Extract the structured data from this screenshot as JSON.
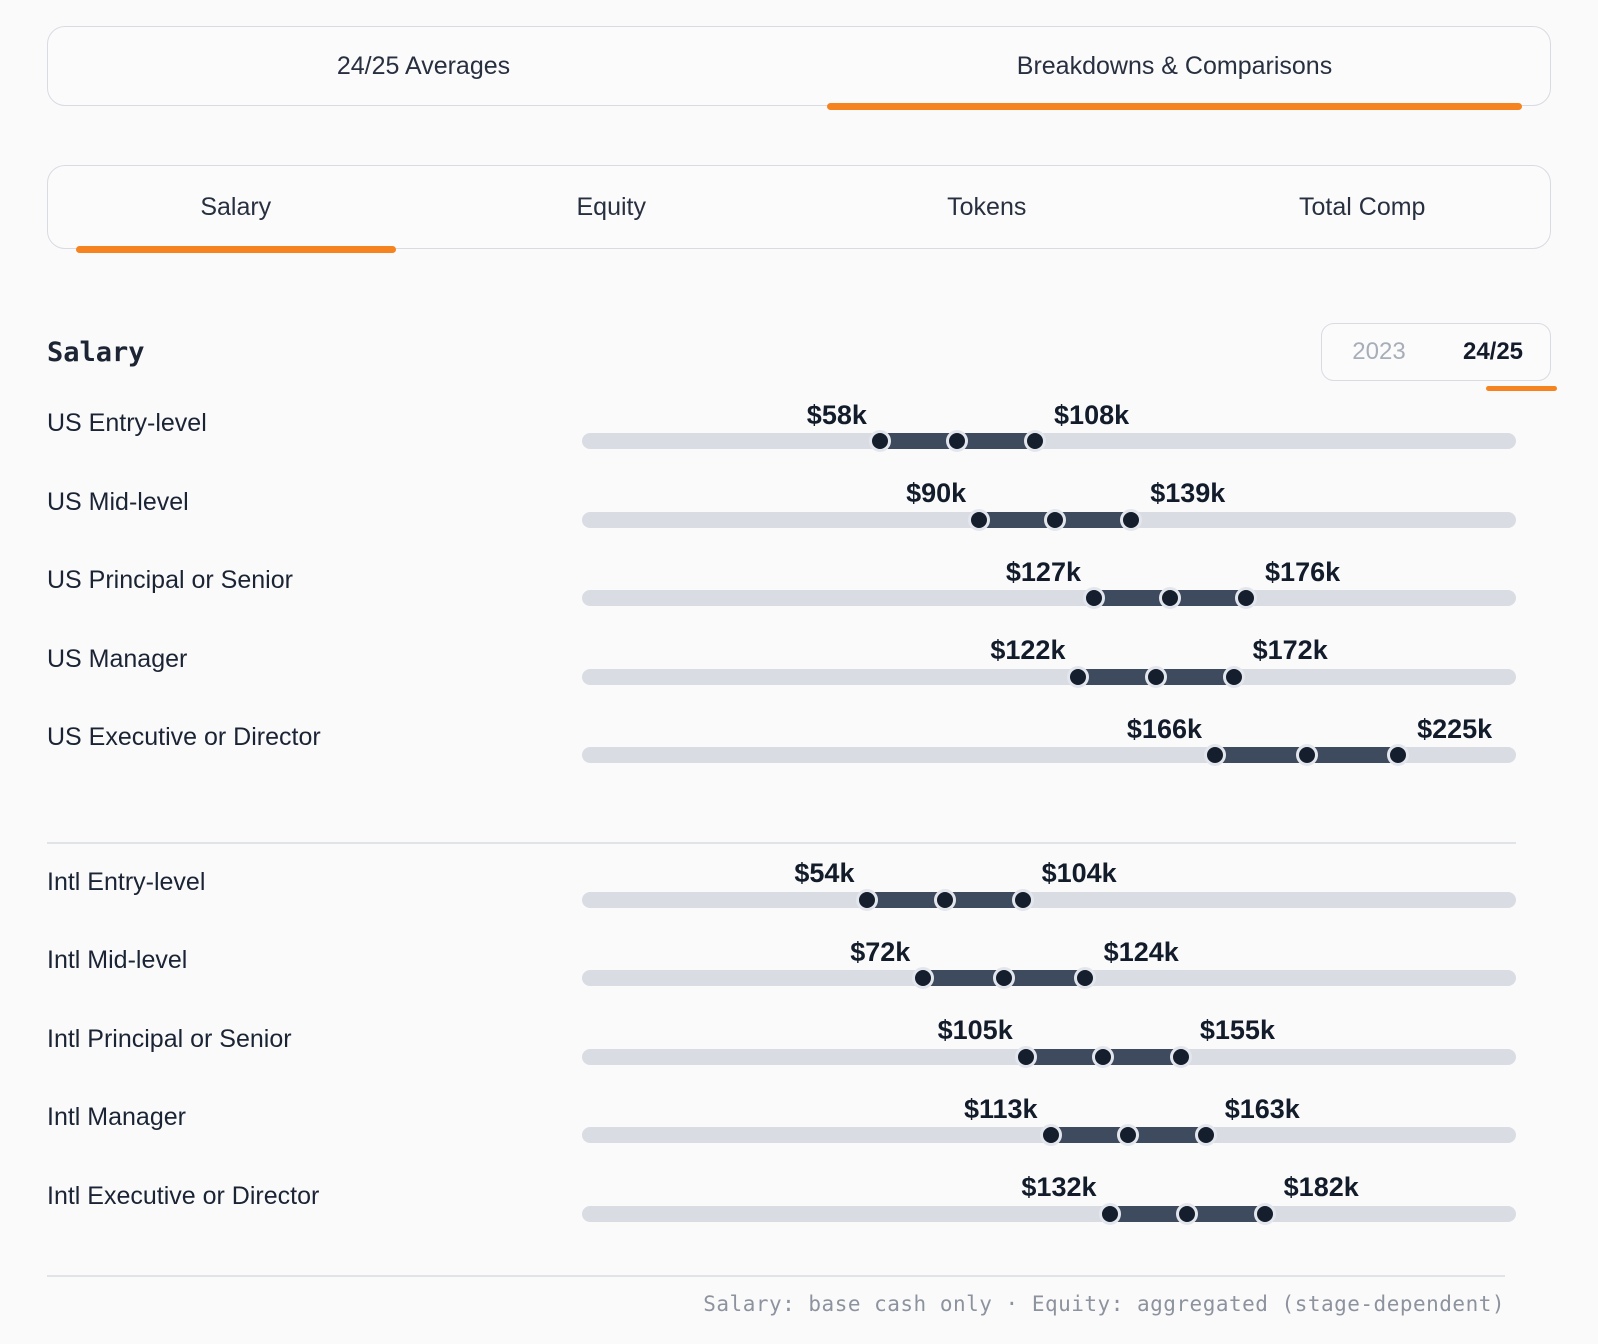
{
  "colors": {
    "accent": "#f5831f",
    "track": "#d9dde3",
    "bar": "#3e4a5d",
    "dot": "#141e2d",
    "page_background": "#fafafa"
  },
  "primary_tabs": {
    "items": [
      {
        "label": "24/25 Averages",
        "active": false
      },
      {
        "label": "Breakdowns & Comparisons",
        "active": true
      }
    ]
  },
  "secondary_tabs": {
    "items": [
      {
        "label": "Salary",
        "active": true
      },
      {
        "label": "Equity",
        "active": false
      },
      {
        "label": "Tokens",
        "active": false
      },
      {
        "label": "Total Comp",
        "active": false
      }
    ]
  },
  "section": {
    "title": "Salary"
  },
  "year_toggle": {
    "options": [
      {
        "label": "2023",
        "active": false
      },
      {
        "label": "24/25",
        "active": true
      }
    ]
  },
  "chart_data": {
    "type": "bar",
    "variant": "horizontal-range-dumbbell",
    "title": "Salary",
    "unit": "USD thousands",
    "axis": {
      "min": -38,
      "max": 263,
      "gridlines": false
    },
    "note": "each row shows min and max salary with dots at min, midpoint, max",
    "groups": [
      {
        "name": "US",
        "rows": [
          {
            "label": "US Entry-level",
            "min": 58,
            "max": 108,
            "mid": 83,
            "min_label": "$58k",
            "max_label": "$108k"
          },
          {
            "label": "US Mid-level",
            "min": 90,
            "max": 139,
            "mid": 114.5,
            "min_label": "$90k",
            "max_label": "$139k"
          },
          {
            "label": "US Principal or Senior",
            "min": 127,
            "max": 176,
            "mid": 151.5,
            "min_label": "$127k",
            "max_label": "$176k"
          },
          {
            "label": "US Manager",
            "min": 122,
            "max": 172,
            "mid": 147,
            "min_label": "$122k",
            "max_label": "$172k"
          },
          {
            "label": "US Executive or Director",
            "min": 166,
            "max": 225,
            "mid": 195.5,
            "min_label": "$166k",
            "max_label": "$225k"
          }
        ]
      },
      {
        "name": "Intl",
        "rows": [
          {
            "label": "Intl Entry-level",
            "min": 54,
            "max": 104,
            "mid": 79,
            "min_label": "$54k",
            "max_label": "$104k"
          },
          {
            "label": "Intl Mid-level",
            "min": 72,
            "max": 124,
            "mid": 98,
            "min_label": "$72k",
            "max_label": "$124k"
          },
          {
            "label": "Intl Principal or Senior",
            "min": 105,
            "max": 155,
            "mid": 130,
            "min_label": "$105k",
            "max_label": "$155k"
          },
          {
            "label": "Intl Manager",
            "min": 113,
            "max": 163,
            "mid": 138,
            "min_label": "$113k",
            "max_label": "$163k"
          },
          {
            "label": "Intl Executive or Director",
            "min": 132,
            "max": 182,
            "mid": 157,
            "min_label": "$132k",
            "max_label": "$182k"
          }
        ]
      }
    ]
  },
  "footer": {
    "note": "Salary: base cash only · Equity: aggregated (stage-dependent)"
  }
}
